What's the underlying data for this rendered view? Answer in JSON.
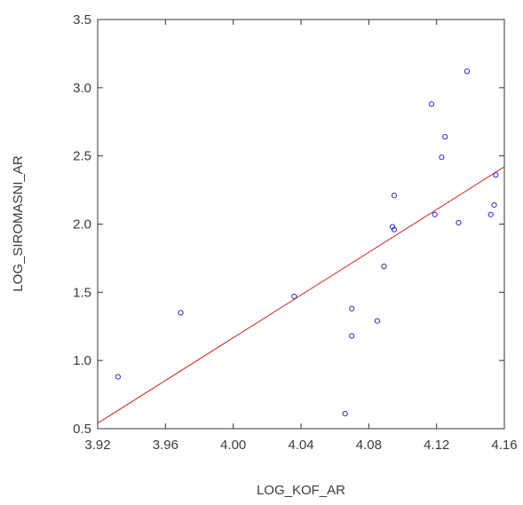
{
  "chart_data": {
    "type": "scatter",
    "title": "",
    "xlabel": "LOG_KOF_AR",
    "ylabel": "LOG_SIROMASNI_AR",
    "xlim": [
      3.92,
      4.16
    ],
    "ylim": [
      0.5,
      3.5
    ],
    "xticks": [
      "3.92",
      "3.96",
      "4.00",
      "4.04",
      "4.08",
      "4.12",
      "4.16"
    ],
    "yticks": [
      "0.5",
      "1.0",
      "1.5",
      "2.0",
      "2.5",
      "3.0",
      "3.5"
    ],
    "grid": false,
    "points": [
      {
        "x": 3.932,
        "y": 0.88
      },
      {
        "x": 3.969,
        "y": 1.35
      },
      {
        "x": 4.036,
        "y": 1.47
      },
      {
        "x": 4.066,
        "y": 0.61
      },
      {
        "x": 4.07,
        "y": 1.38
      },
      {
        "x": 4.07,
        "y": 1.18
      },
      {
        "x": 4.085,
        "y": 1.29
      },
      {
        "x": 4.089,
        "y": 1.69
      },
      {
        "x": 4.094,
        "y": 1.98
      },
      {
        "x": 4.095,
        "y": 1.96
      },
      {
        "x": 4.095,
        "y": 2.21
      },
      {
        "x": 4.117,
        "y": 2.88
      },
      {
        "x": 4.119,
        "y": 2.07
      },
      {
        "x": 4.123,
        "y": 2.49
      },
      {
        "x": 4.125,
        "y": 2.64
      },
      {
        "x": 4.133,
        "y": 2.01
      },
      {
        "x": 4.138,
        "y": 3.12
      },
      {
        "x": 4.152,
        "y": 2.07
      },
      {
        "x": 4.154,
        "y": 2.14
      },
      {
        "x": 4.155,
        "y": 2.36
      }
    ],
    "fit_line": {
      "x": [
        3.92,
        4.16
      ],
      "y": [
        0.54,
        2.42
      ]
    },
    "colors": {
      "points": "#2b2bb8",
      "fit_line": "#cc2222",
      "axes": "#333333"
    }
  }
}
